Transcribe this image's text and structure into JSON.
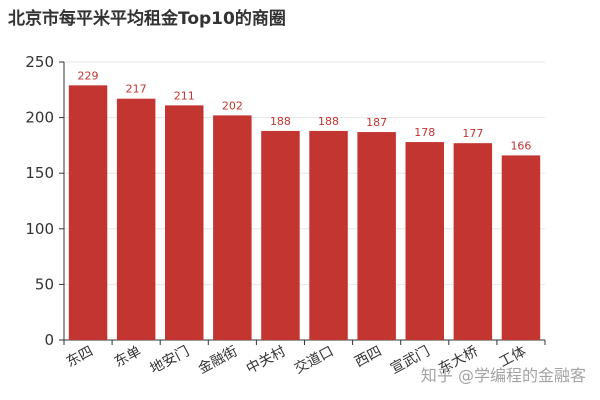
{
  "watermark": "知乎 @学编程的金融客",
  "colors": {
    "bar": "#c23531",
    "label": "#c23531",
    "axis": "#333333",
    "grid": "#e6e6e6"
  },
  "chart_data": {
    "type": "bar",
    "title": "北京市每平米平均租金Top10的商圈",
    "categories": [
      "东四",
      "东单",
      "地安门",
      "金融街",
      "中关村",
      "交道口",
      "西四",
      "宣武门",
      "东大桥",
      "工体"
    ],
    "values": [
      229,
      217,
      211,
      202,
      188,
      188,
      187,
      178,
      177,
      166
    ],
    "xlabel": "",
    "ylabel": "",
    "ylim": [
      0,
      250
    ],
    "yticks": [
      0,
      50,
      100,
      150,
      200,
      250
    ],
    "grid": true,
    "data_labels": true
  }
}
